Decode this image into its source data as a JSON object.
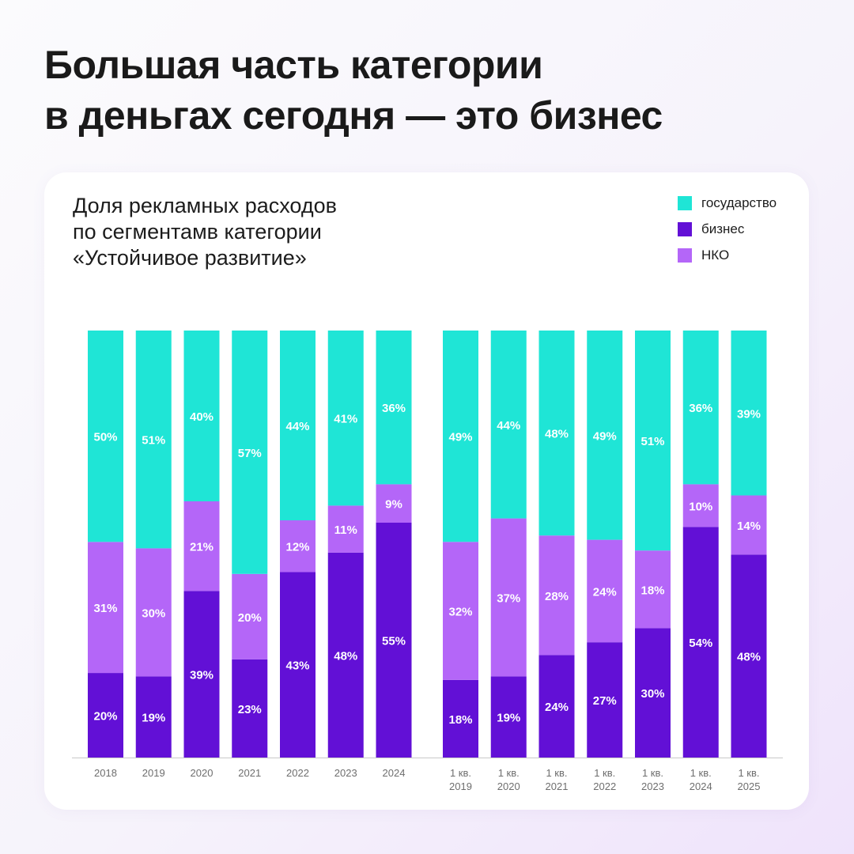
{
  "headline": [
    "Большая часть категории",
    "в деньгах сегодня — это бизнес"
  ],
  "subtitle": [
    "Доля рекламных расходов",
    "по сегментамв категории",
    "«Устойчивое развитие»"
  ],
  "legend": [
    {
      "label": "государство",
      "color": "#1fe5d6"
    },
    {
      "label": "бизнес",
      "color": "#6210d6"
    },
    {
      "label": "НКО",
      "color": "#b466f8"
    }
  ],
  "chart_data": {
    "type": "bar",
    "stacked": true,
    "percent": true,
    "ylim": [
      0,
      100
    ],
    "grid": false,
    "legend_position": "top-right",
    "groups": [
      {
        "categories": [
          "2018",
          "2019",
          "2020",
          "2021",
          "2022",
          "2023",
          "2024"
        ]
      },
      {
        "categories": [
          "1 кв. 2019",
          "1 кв. 2020",
          "1 кв. 2021",
          "1 кв. 2022",
          "1 кв. 2023",
          "1 кв. 2024",
          "1 кв. 2025"
        ]
      }
    ],
    "series": [
      {
        "name": "бизнес",
        "color": "#6210d6",
        "values": [
          20,
          19,
          39,
          23,
          43,
          48,
          55,
          18,
          19,
          24,
          27,
          30,
          54,
          48
        ]
      },
      {
        "name": "НКО",
        "color": "#b466f8",
        "values": [
          31,
          30,
          21,
          20,
          12,
          11,
          9,
          32,
          37,
          28,
          24,
          18,
          10,
          14
        ]
      },
      {
        "name": "государство",
        "color": "#1fe5d6",
        "values": [
          50,
          51,
          40,
          57,
          44,
          41,
          36,
          49,
          44,
          48,
          49,
          51,
          36,
          39
        ]
      }
    ]
  }
}
